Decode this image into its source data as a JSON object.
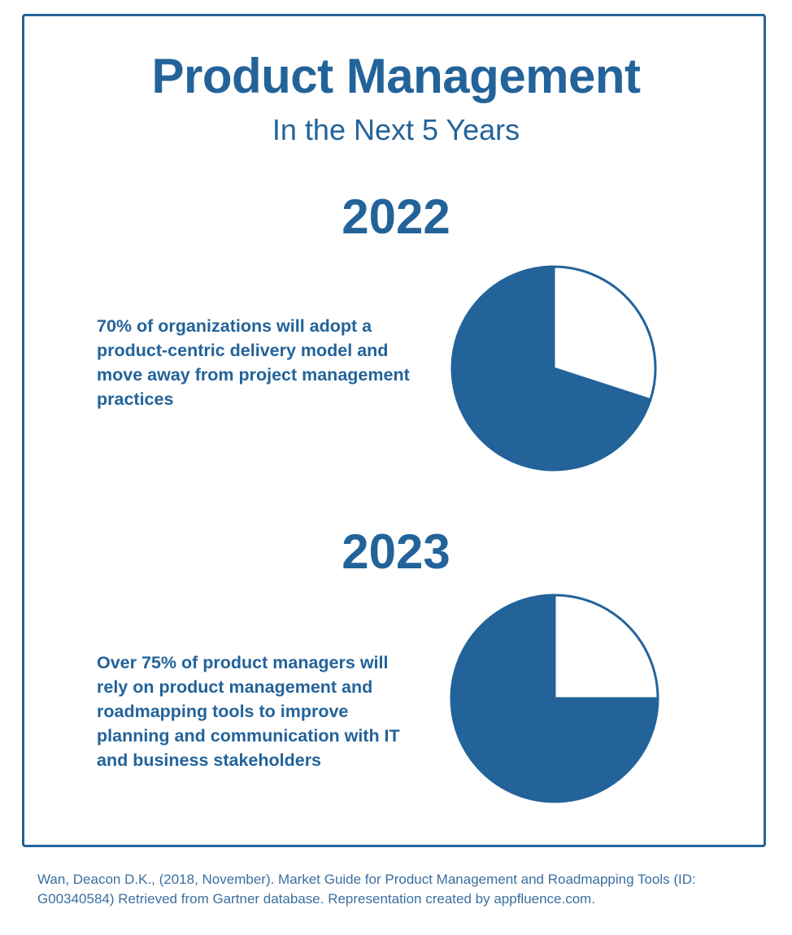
{
  "header": {
    "title": "Product Management",
    "subtitle": "In the Next 5 Years"
  },
  "sections": [
    {
      "year": "2022",
      "percent_text": "70%",
      "text_before": "",
      "text_after": " of organizations will adopt a product-centric delivery model and move away from project management practices"
    },
    {
      "year": "2023",
      "percent_text": "75%",
      "text_before": "Over ",
      "text_after": " of product managers will rely on product management and roadmapping tools to improve planning and communication with IT and business stakeholders"
    }
  ],
  "footer": {
    "citation": "Wan, Deacon D.K., (2018, November). Market Guide for Product Management and Roadmapping Tools (ID: G00340584) Retrieved from Gartner database. Representation created by appfluence.com."
  },
  "colors": {
    "primary": "#23639a",
    "background": "#ffffff"
  },
  "chart_data": [
    {
      "type": "pie",
      "slices": [
        {
          "label": "",
          "value": 70,
          "color": "#23639a"
        },
        {
          "label": "",
          "value": 30,
          "color": "#ffffff"
        }
      ]
    },
    {
      "type": "pie",
      "slices": [
        {
          "label": "",
          "value": 75,
          "color": "#23639a"
        },
        {
          "label": "",
          "value": 25,
          "color": "#ffffff"
        }
      ]
    }
  ]
}
